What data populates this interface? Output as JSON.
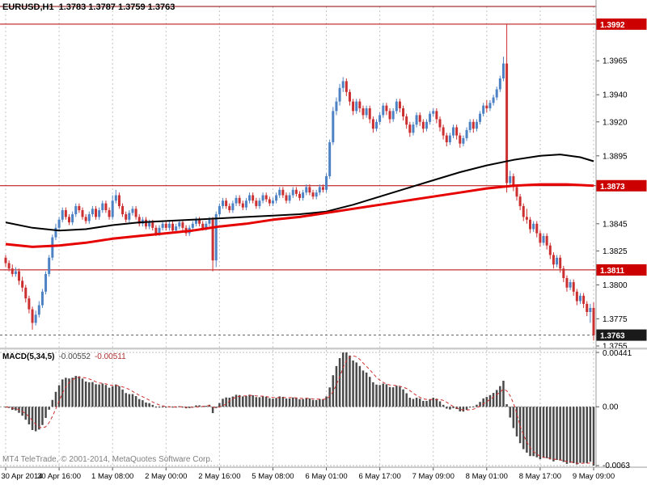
{
  "header": {
    "symbol_period": "EURUSD,H1",
    "ohlc": "1.3783 1.3787 1.3759 1.3763"
  },
  "footer": {
    "copyright": "MT4 TeleTrade, © 2001-2014, MetaQuotes Software Corp."
  },
  "colors": {
    "up_candle": "#4d82c4",
    "down_candle": "#cc2f2f",
    "ma_black": "#000000",
    "ma_red": "#e60000",
    "grid": "#c4c4c4",
    "level_line": "#b00000",
    "badge_red": "#cc0000",
    "badge_black": "#1a1a1a",
    "macd_bar": "#4a4a4a",
    "macd_signal": "#cc2f2f",
    "separator": "#999999"
  },
  "chart_data": {
    "type": "candlestick+macd",
    "title": "EURUSD,H1",
    "legend_position": "none",
    "grid": "vertical-dashed",
    "price_axis": {
      "top": 1.4005,
      "bottom": 1.3755,
      "ticks": [
        "1.3965",
        "1.3940",
        "1.3920",
        "1.3895",
        "1.3845",
        "1.3825",
        "1.3800",
        "1.3775",
        "1.3755"
      ]
    },
    "levels": [
      {
        "price": 1.4005,
        "label": "",
        "style": "dark"
      },
      {
        "price": 1.3992,
        "label": "1.3992",
        "style": "red"
      },
      {
        "price": 1.3873,
        "label": "1.3873",
        "style": "red"
      },
      {
        "price": 1.3811,
        "label": "1.3811",
        "style": "red"
      },
      {
        "price": 1.3763,
        "label": "1.3763",
        "style": "current"
      }
    ],
    "time_labels": [
      "30 Apr 2014",
      "30 Apr 16:00",
      "1 May 08:00",
      "2 May 00:00",
      "2 May 16:00",
      "5 May 08:00",
      "6 May 01:00",
      "6 May 17:00",
      "7 May 09:00",
      "8 May 01:00",
      "8 May 17:00",
      "9 May 09:00"
    ],
    "bars_per_label": 16,
    "candles": [
      [
        1.382,
        1.3822,
        1.3813,
        1.3816
      ],
      [
        1.3816,
        1.3818,
        1.381,
        1.3812
      ],
      [
        1.3812,
        1.3815,
        1.3806,
        1.3808
      ],
      [
        1.3808,
        1.3813,
        1.3806,
        1.381
      ],
      [
        1.381,
        1.3812,
        1.38,
        1.3803
      ],
      [
        1.3803,
        1.3806,
        1.3795,
        1.3798
      ],
      [
        1.3798,
        1.38,
        1.3787,
        1.379
      ],
      [
        1.379,
        1.3792,
        1.3779,
        1.3782
      ],
      [
        1.3782,
        1.3784,
        1.3767,
        1.3772
      ],
      [
        1.3772,
        1.3781,
        1.377,
        1.3778
      ],
      [
        1.3778,
        1.3788,
        1.3776,
        1.3785
      ],
      [
        1.3785,
        1.3797,
        1.3783,
        1.3795
      ],
      [
        1.3795,
        1.381,
        1.3793,
        1.3808
      ],
      [
        1.3808,
        1.3822,
        1.3806,
        1.382
      ],
      [
        1.382,
        1.3837,
        1.3818,
        1.3835
      ],
      [
        1.3835,
        1.3845,
        1.3833,
        1.3842
      ],
      [
        1.3842,
        1.385,
        1.384,
        1.3848
      ],
      [
        1.3848,
        1.3857,
        1.3846,
        1.3855
      ],
      [
        1.3855,
        1.3857,
        1.3848,
        1.385
      ],
      [
        1.385,
        1.3852,
        1.3844,
        1.3846
      ],
      [
        1.3846,
        1.3854,
        1.3844,
        1.3852
      ],
      [
        1.3852,
        1.386,
        1.385,
        1.3858
      ],
      [
        1.3858,
        1.386,
        1.3853,
        1.3855
      ],
      [
        1.3855,
        1.3857,
        1.3848,
        1.385
      ],
      [
        1.385,
        1.3852,
        1.3845,
        1.3847
      ],
      [
        1.3847,
        1.3854,
        1.3845,
        1.3852
      ],
      [
        1.3852,
        1.3858,
        1.385,
        1.3856
      ],
      [
        1.3856,
        1.3858,
        1.3848,
        1.385
      ],
      [
        1.385,
        1.3857,
        1.3848,
        1.3855
      ],
      [
        1.3855,
        1.3862,
        1.3853,
        1.386
      ],
      [
        1.386,
        1.3862,
        1.3853,
        1.3855
      ],
      [
        1.3855,
        1.3857,
        1.3848,
        1.385
      ],
      [
        1.385,
        1.3866,
        1.3848,
        1.3862
      ],
      [
        1.3862,
        1.387,
        1.386,
        1.3866
      ],
      [
        1.3866,
        1.3868,
        1.3856,
        1.3858
      ],
      [
        1.3858,
        1.386,
        1.385,
        1.3852
      ],
      [
        1.3852,
        1.3854,
        1.3846,
        1.3848
      ],
      [
        1.3848,
        1.3855,
        1.3846,
        1.3853
      ],
      [
        1.3853,
        1.3858,
        1.3851,
        1.3856
      ],
      [
        1.3856,
        1.3858,
        1.3848,
        1.385
      ],
      [
        1.385,
        1.3852,
        1.3843,
        1.3845
      ],
      [
        1.3845,
        1.385,
        1.3843,
        1.3848
      ],
      [
        1.3848,
        1.385,
        1.3841,
        1.3843
      ],
      [
        1.3843,
        1.3848,
        1.3841,
        1.3846
      ],
      [
        1.3846,
        1.3848,
        1.384,
        1.3842
      ],
      [
        1.3842,
        1.3844,
        1.3836,
        1.3838
      ],
      [
        1.3838,
        1.3844,
        1.3836,
        1.3842
      ],
      [
        1.3842,
        1.3847,
        1.384,
        1.3845
      ],
      [
        1.3845,
        1.3847,
        1.384,
        1.3842
      ],
      [
        1.3842,
        1.3847,
        1.384,
        1.3845
      ],
      [
        1.3845,
        1.3847,
        1.3838,
        1.384
      ],
      [
        1.384,
        1.3845,
        1.3838,
        1.3843
      ],
      [
        1.3843,
        1.3848,
        1.3841,
        1.3846
      ],
      [
        1.3846,
        1.3848,
        1.384,
        1.3842
      ],
      [
        1.3842,
        1.3844,
        1.3836,
        1.3838
      ],
      [
        1.3838,
        1.3844,
        1.3836,
        1.3842
      ],
      [
        1.3842,
        1.3847,
        1.384,
        1.3845
      ],
      [
        1.3845,
        1.385,
        1.3843,
        1.3848
      ],
      [
        1.3848,
        1.385,
        1.3843,
        1.3845
      ],
      [
        1.3845,
        1.3847,
        1.384,
        1.3842
      ],
      [
        1.3842,
        1.3847,
        1.384,
        1.3845
      ],
      [
        1.3845,
        1.385,
        1.3843,
        1.3848
      ],
      [
        1.3848,
        1.385,
        1.381,
        1.3818
      ],
      [
        1.3818,
        1.3854,
        1.3813,
        1.3852
      ],
      [
        1.3852,
        1.386,
        1.385,
        1.3858
      ],
      [
        1.3858,
        1.3864,
        1.3856,
        1.3862
      ],
      [
        1.3862,
        1.3864,
        1.3856,
        1.3858
      ],
      [
        1.3858,
        1.386,
        1.3853,
        1.3855
      ],
      [
        1.3855,
        1.3862,
        1.3853,
        1.386
      ],
      [
        1.386,
        1.3866,
        1.3858,
        1.3864
      ],
      [
        1.3864,
        1.3866,
        1.3858,
        1.386
      ],
      [
        1.386,
        1.3862,
        1.3855,
        1.3857
      ],
      [
        1.3857,
        1.3864,
        1.3855,
        1.3862
      ],
      [
        1.3862,
        1.3868,
        1.386,
        1.3866
      ],
      [
        1.3866,
        1.3868,
        1.386,
        1.3862
      ],
      [
        1.3862,
        1.3864,
        1.3856,
        1.3858
      ],
      [
        1.3858,
        1.3864,
        1.3856,
        1.3862
      ],
      [
        1.3862,
        1.3868,
        1.386,
        1.3866
      ],
      [
        1.3866,
        1.3868,
        1.3861,
        1.3863
      ],
      [
        1.3863,
        1.3865,
        1.3858,
        1.386
      ],
      [
        1.386,
        1.3864,
        1.3858,
        1.3862
      ],
      [
        1.3862,
        1.3868,
        1.386,
        1.3866
      ],
      [
        1.3866,
        1.3872,
        1.3864,
        1.387
      ],
      [
        1.387,
        1.3872,
        1.3864,
        1.3866
      ],
      [
        1.3866,
        1.3868,
        1.386,
        1.3862
      ],
      [
        1.3862,
        1.3868,
        1.386,
        1.3866
      ],
      [
        1.3866,
        1.3872,
        1.3864,
        1.387
      ],
      [
        1.387,
        1.3872,
        1.3865,
        1.3867
      ],
      [
        1.3867,
        1.3869,
        1.3862,
        1.3864
      ],
      [
        1.3864,
        1.387,
        1.3862,
        1.3868
      ],
      [
        1.3868,
        1.3874,
        1.3866,
        1.3872
      ],
      [
        1.3872,
        1.3874,
        1.3866,
        1.3868
      ],
      [
        1.3868,
        1.387,
        1.3863,
        1.3865
      ],
      [
        1.3865,
        1.387,
        1.3863,
        1.3868
      ],
      [
        1.3868,
        1.3874,
        1.3866,
        1.3872
      ],
      [
        1.3872,
        1.3874,
        1.3868,
        1.387
      ],
      [
        1.387,
        1.3882,
        1.3868,
        1.388
      ],
      [
        1.388,
        1.3907,
        1.3878,
        1.3905
      ],
      [
        1.3905,
        1.3931,
        1.3903,
        1.3928
      ],
      [
        1.3928,
        1.3938,
        1.3925,
        1.3935
      ],
      [
        1.3935,
        1.3948,
        1.3932,
        1.3945
      ],
      [
        1.3945,
        1.3953,
        1.3942,
        1.395
      ],
      [
        1.395,
        1.3952,
        1.3939,
        1.3942
      ],
      [
        1.3942,
        1.3944,
        1.3932,
        1.3935
      ],
      [
        1.3935,
        1.3937,
        1.3925,
        1.3928
      ],
      [
        1.3928,
        1.3937,
        1.3926,
        1.3935
      ],
      [
        1.3935,
        1.3937,
        1.3927,
        1.393
      ],
      [
        1.393,
        1.3932,
        1.3922,
        1.3925
      ],
      [
        1.3925,
        1.3932,
        1.3923,
        1.393
      ],
      [
        1.393,
        1.3932,
        1.3919,
        1.3922
      ],
      [
        1.3922,
        1.3924,
        1.3912,
        1.3915
      ],
      [
        1.3915,
        1.3922,
        1.3913,
        1.392
      ],
      [
        1.392,
        1.3927,
        1.3918,
        1.3925
      ],
      [
        1.3925,
        1.3934,
        1.3923,
        1.3932
      ],
      [
        1.3932,
        1.3934,
        1.3925,
        1.3928
      ],
      [
        1.3928,
        1.393,
        1.3919,
        1.3922
      ],
      [
        1.3922,
        1.393,
        1.392,
        1.3928
      ],
      [
        1.3928,
        1.3937,
        1.3926,
        1.3935
      ],
      [
        1.3935,
        1.3937,
        1.3927,
        1.393
      ],
      [
        1.393,
        1.3932,
        1.3921,
        1.3924
      ],
      [
        1.3924,
        1.3926,
        1.3915,
        1.3918
      ],
      [
        1.3918,
        1.392,
        1.3909,
        1.3912
      ],
      [
        1.3912,
        1.392,
        1.391,
        1.3918
      ],
      [
        1.3918,
        1.3927,
        1.3916,
        1.3925
      ],
      [
        1.3925,
        1.3927,
        1.3917,
        1.392
      ],
      [
        1.392,
        1.3922,
        1.3912,
        1.3915
      ],
      [
        1.3915,
        1.3922,
        1.3913,
        1.392
      ],
      [
        1.392,
        1.3928,
        1.3918,
        1.3926
      ],
      [
        1.3926,
        1.393,
        1.3924,
        1.3928
      ],
      [
        1.3928,
        1.393,
        1.3919,
        1.3922
      ],
      [
        1.3922,
        1.3924,
        1.3913,
        1.3916
      ],
      [
        1.3916,
        1.3918,
        1.3907,
        1.391
      ],
      [
        1.391,
        1.3912,
        1.3902,
        1.3905
      ],
      [
        1.3905,
        1.3912,
        1.3903,
        1.391
      ],
      [
        1.391,
        1.3918,
        1.3908,
        1.3916
      ],
      [
        1.3916,
        1.3918,
        1.3907,
        1.391
      ],
      [
        1.391,
        1.3912,
        1.3901,
        1.3904
      ],
      [
        1.3904,
        1.391,
        1.3902,
        1.3908
      ],
      [
        1.3908,
        1.3916,
        1.3906,
        1.3914
      ],
      [
        1.3914,
        1.3922,
        1.3912,
        1.392
      ],
      [
        1.392,
        1.3922,
        1.3912,
        1.3915
      ],
      [
        1.3915,
        1.3922,
        1.3913,
        1.392
      ],
      [
        1.392,
        1.3928,
        1.3918,
        1.3926
      ],
      [
        1.3926,
        1.3934,
        1.3924,
        1.3932
      ],
      [
        1.3932,
        1.3936,
        1.3927,
        1.393
      ],
      [
        1.393,
        1.3936,
        1.3928,
        1.3934
      ],
      [
        1.3934,
        1.394,
        1.3932,
        1.3938
      ],
      [
        1.3938,
        1.3946,
        1.3936,
        1.3944
      ],
      [
        1.3944,
        1.3954,
        1.3942,
        1.3952
      ],
      [
        1.3952,
        1.3968,
        1.395,
        1.3963
      ],
      [
        1.3963,
        1.3992,
        1.3868,
        1.3875
      ],
      [
        1.3875,
        1.3884,
        1.3872,
        1.388
      ],
      [
        1.388,
        1.3882,
        1.3869,
        1.3872
      ],
      [
        1.3872,
        1.3874,
        1.3862,
        1.3865
      ],
      [
        1.3865,
        1.3867,
        1.3855,
        1.3858
      ],
      [
        1.3858,
        1.386,
        1.3847,
        1.385
      ],
      [
        1.385,
        1.3856,
        1.3845,
        1.3848
      ],
      [
        1.3848,
        1.385,
        1.3838,
        1.3841
      ],
      [
        1.3841,
        1.3847,
        1.3839,
        1.3845
      ],
      [
        1.3845,
        1.3847,
        1.3835,
        1.3838
      ],
      [
        1.3838,
        1.384,
        1.3828,
        1.3831
      ],
      [
        1.3831,
        1.3838,
        1.3829,
        1.3836
      ],
      [
        1.3836,
        1.3838,
        1.3826,
        1.3829
      ],
      [
        1.3829,
        1.3831,
        1.3819,
        1.3822
      ],
      [
        1.3822,
        1.3824,
        1.3812,
        1.3815
      ],
      [
        1.3815,
        1.3822,
        1.3813,
        1.382
      ],
      [
        1.382,
        1.3822,
        1.3809,
        1.3812
      ],
      [
        1.3812,
        1.3814,
        1.3802,
        1.3805
      ],
      [
        1.3805,
        1.3807,
        1.3795,
        1.3798
      ],
      [
        1.3798,
        1.3804,
        1.3796,
        1.3802
      ],
      [
        1.3802,
        1.3804,
        1.3792,
        1.3795
      ],
      [
        1.3795,
        1.3797,
        1.3785,
        1.3788
      ],
      [
        1.3788,
        1.3794,
        1.3786,
        1.3792
      ],
      [
        1.3792,
        1.3794,
        1.3783,
        1.3786
      ],
      [
        1.3786,
        1.3788,
        1.3777,
        1.378
      ],
      [
        1.378,
        1.3786,
        1.3772,
        1.3783
      ],
      [
        1.3783,
        1.3787,
        1.3759,
        1.3763
      ]
    ],
    "ma_black": [
      [
        0,
        1.3846
      ],
      [
        8,
        1.3842
      ],
      [
        16,
        1.384
      ],
      [
        24,
        1.3841
      ],
      [
        32,
        1.3844
      ],
      [
        40,
        1.3846
      ],
      [
        48,
        1.3847
      ],
      [
        56,
        1.3848
      ],
      [
        64,
        1.3849
      ],
      [
        72,
        1.385
      ],
      [
        80,
        1.3851
      ],
      [
        88,
        1.3852
      ],
      [
        96,
        1.3854
      ],
      [
        104,
        1.3859
      ],
      [
        112,
        1.3865
      ],
      [
        120,
        1.3871
      ],
      [
        128,
        1.3877
      ],
      [
        136,
        1.3883
      ],
      [
        144,
        1.3888
      ],
      [
        152,
        1.3892
      ],
      [
        160,
        1.3895
      ],
      [
        166,
        1.3896
      ],
      [
        172,
        1.3894
      ],
      [
        176,
        1.3891
      ]
    ],
    "ma_red": [
      [
        0,
        1.383
      ],
      [
        8,
        1.3828
      ],
      [
        16,
        1.3829
      ],
      [
        24,
        1.3831
      ],
      [
        32,
        1.3834
      ],
      [
        40,
        1.3836
      ],
      [
        48,
        1.3838
      ],
      [
        56,
        1.384
      ],
      [
        64,
        1.3843
      ],
      [
        72,
        1.3845
      ],
      [
        80,
        1.3848
      ],
      [
        88,
        1.385
      ],
      [
        96,
        1.3853
      ],
      [
        104,
        1.3856
      ],
      [
        112,
        1.3859
      ],
      [
        120,
        1.3862
      ],
      [
        128,
        1.3865
      ],
      [
        136,
        1.3868
      ],
      [
        144,
        1.3871
      ],
      [
        152,
        1.3873
      ],
      [
        160,
        1.3874
      ],
      [
        168,
        1.3874
      ],
      [
        176,
        1.3873
      ]
    ],
    "macd": {
      "label": "MACD(5,34,5)",
      "value_main": "-0.00552",
      "value_signal": "-0.00511",
      "axis_ticks": [
        "0.00441",
        "0.00",
        "-0.0063"
      ]
    }
  }
}
